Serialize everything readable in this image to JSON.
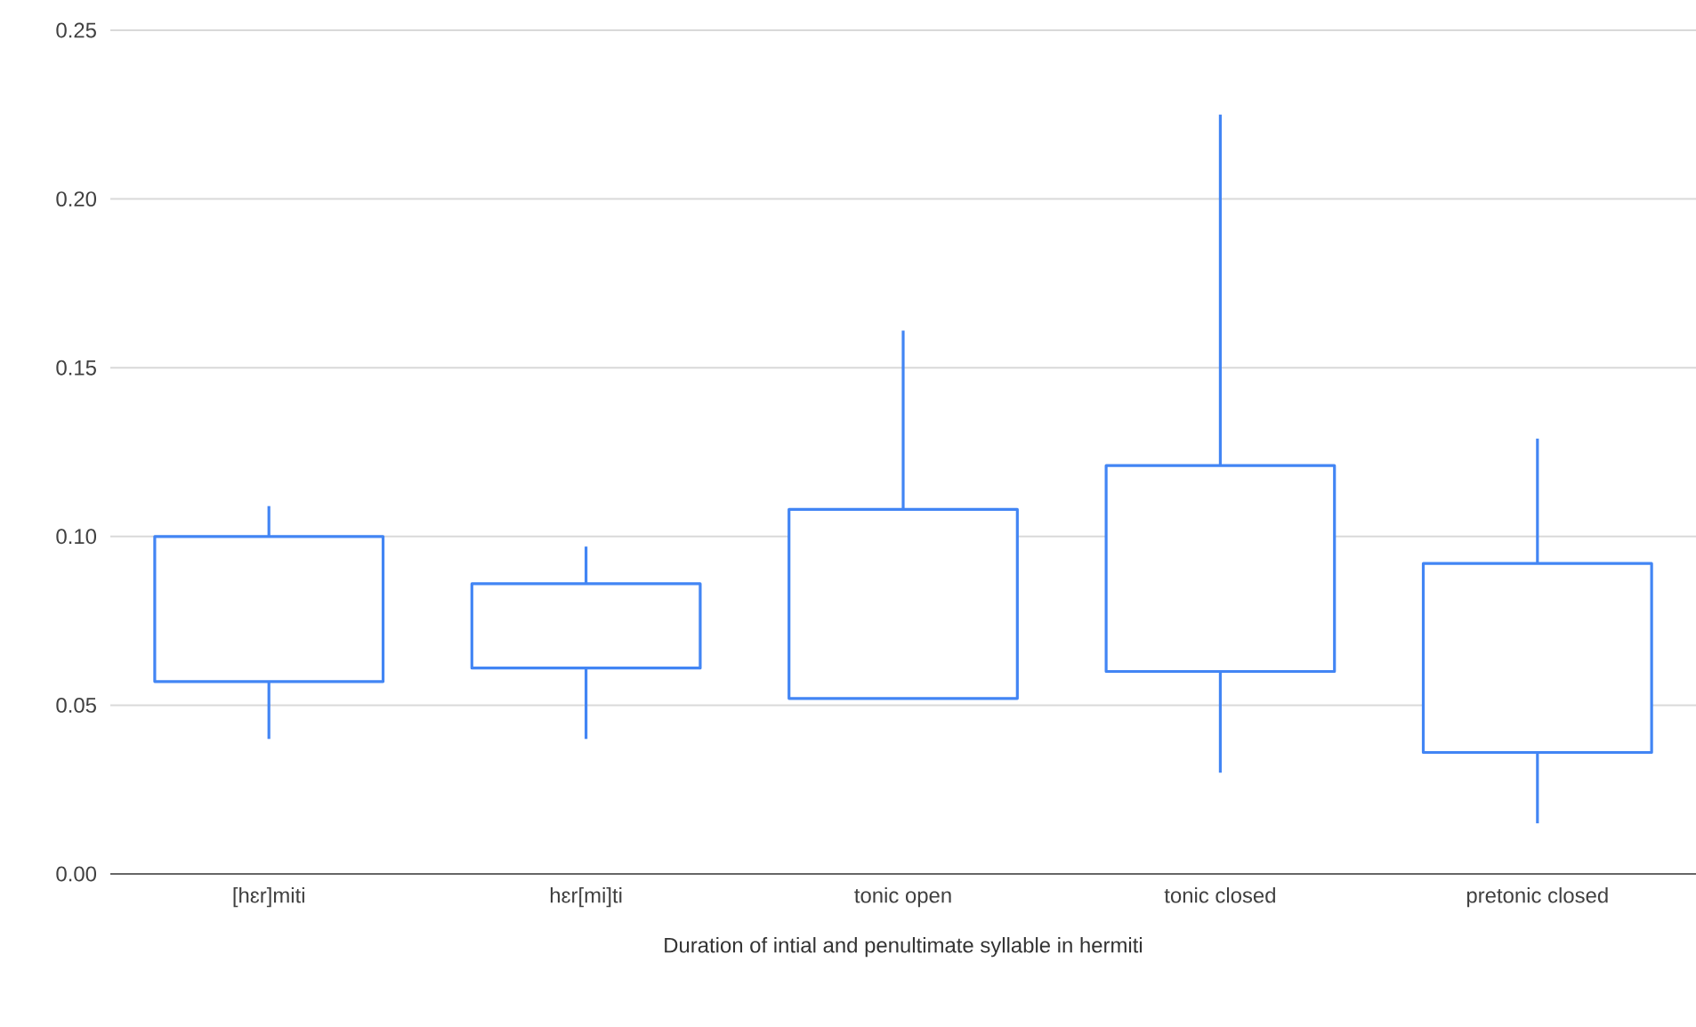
{
  "chart_data": {
    "type": "candlestick",
    "xlabel": "Duration of intial and penultimate syllable in hermiti",
    "categories": [
      "[hɛr]miti",
      "hɛr[mi]ti",
      "tonic open",
      "tonic closed",
      "pretonic closed"
    ],
    "ohlc": [
      [
        0.057,
        0.109,
        0.04,
        0.1
      ],
      [
        0.061,
        0.097,
        0.04,
        0.086
      ],
      [
        0.052,
        0.161,
        0.052,
        0.108
      ],
      [
        0.06,
        0.225,
        0.03,
        0.121
      ],
      [
        0.036,
        0.129,
        0.015,
        0.092
      ]
    ],
    "color": "#4285f4",
    "ylim": [
      0,
      0.25
    ],
    "yticks": [
      {
        "value": 0,
        "label": "0.00"
      },
      {
        "value": 0.05,
        "label": "0.05"
      },
      {
        "value": 0.1,
        "label": "0.10"
      },
      {
        "value": 0.15,
        "label": "0.15"
      },
      {
        "value": 0.2,
        "label": "0.20"
      },
      {
        "value": 0.25,
        "label": "0.25"
      }
    ],
    "grid": "y"
  }
}
